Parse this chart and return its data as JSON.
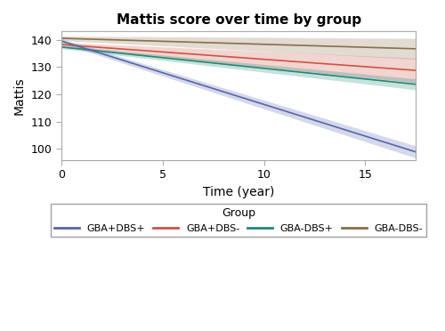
{
  "title": "Mattis score over time by group",
  "xlabel": "Time (year)",
  "ylabel": "Mattis",
  "xlim": [
    0,
    17.5
  ],
  "ylim": [
    96,
    143
  ],
  "yticks": [
    100,
    110,
    120,
    130,
    140
  ],
  "xticks": [
    0,
    5,
    10,
    15
  ],
  "groups": [
    {
      "label": "GBA+DBS+",
      "color": "#5566AA",
      "intercept": 139.5,
      "slope": -2.32,
      "ci_half_start": 0.8,
      "ci_half_end": 2.2
    },
    {
      "label": "GBA+DBS-",
      "color": "#CC5544",
      "intercept": 138.2,
      "slope": -0.54,
      "ci_half_start": 0.8,
      "ci_half_end": 4.5
    },
    {
      "label": "GBA-DBS+",
      "color": "#228877",
      "intercept": 137.3,
      "slope": -0.78,
      "ci_half_start": 0.6,
      "ci_half_end": 2.0
    },
    {
      "label": "GBA-DBS-",
      "color": "#88704A",
      "intercept": 140.5,
      "slope": -0.22,
      "ci_half_start": 0.8,
      "ci_half_end": 3.8
    }
  ],
  "legend_title": "Group",
  "background_color": "#FFFFFF",
  "panel_background": "#FFFFFF",
  "border_color": "#AAAAAA"
}
